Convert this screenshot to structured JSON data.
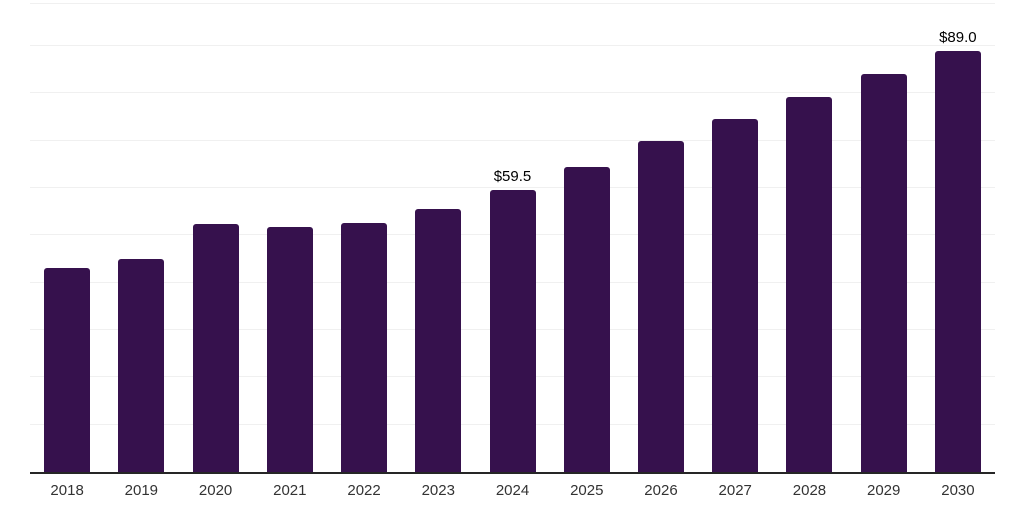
{
  "chart_data": {
    "type": "bar",
    "title": "",
    "xlabel": "",
    "ylabel": "",
    "categories": [
      "2018",
      "2019",
      "2020",
      "2021",
      "2022",
      "2023",
      "2024",
      "2025",
      "2026",
      "2027",
      "2028",
      "2029",
      "2030"
    ],
    "values": [
      43.2,
      45.1,
      52.5,
      51.7,
      52.7,
      55.5,
      59.5,
      64.4,
      69.9,
      74.5,
      79.2,
      84.1,
      89.0
    ],
    "data_labels": [
      null,
      null,
      null,
      null,
      null,
      null,
      "$59.5",
      null,
      null,
      null,
      null,
      null,
      "$89.0"
    ],
    "ylim": [
      0,
      99.1
    ],
    "gridline_values": [
      10,
      20,
      30,
      40,
      50,
      60,
      70,
      80,
      90,
      99.1
    ],
    "grid": "horizontal",
    "legend": "none",
    "colors": {
      "bar": "#36114D",
      "gridline": "#f0f0f0",
      "axis_line": "#262626",
      "data_label": "#000000",
      "tick_label": "#333333",
      "background": "#ffffff"
    }
  }
}
